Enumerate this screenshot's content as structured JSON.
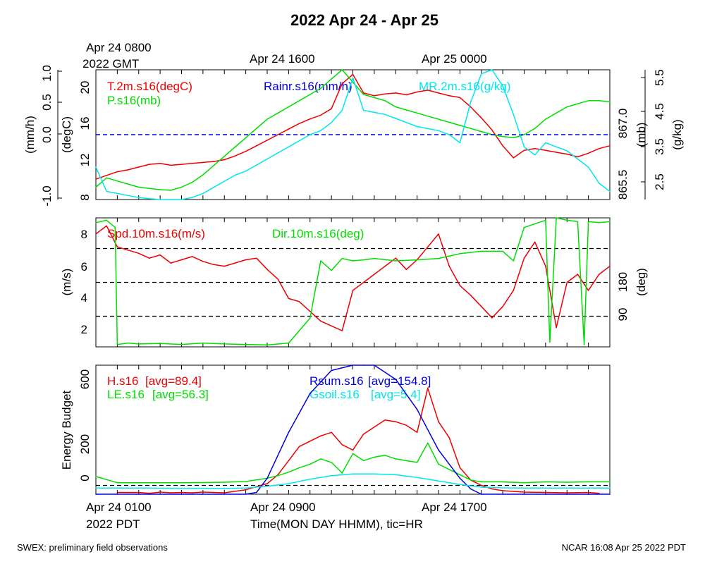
{
  "title": "2022 Apr 24 - Apr 25",
  "top_time_labels": [
    {
      "line1": "Apr 24 0800",
      "line2": "2022 GMT"
    },
    {
      "line1": "Apr 24 1600",
      "line2": ""
    },
    {
      "line1": "Apr 25 0000",
      "line2": ""
    }
  ],
  "bottom_time_labels": [
    {
      "line1": "Apr 24 0100",
      "line2": "2022 PDT"
    },
    {
      "line1": "Apr 24 0900",
      "line2": ""
    },
    {
      "line1": "Apr 24 1700",
      "line2": ""
    }
  ],
  "xlabel": "Time(MON DAY HHMM), tic=HR",
  "footer_left": "SWEX: preliminary field observations",
  "footer_right": "NCAR 16:08 Apr 25 2022 PDT",
  "colors": {
    "red": "#ee0000",
    "green": "#00dd00",
    "blue": "#0000dd",
    "cyan": "#00e5ee",
    "black": "#000000"
  },
  "chart_data": [
    {
      "type": "line",
      "panel": "temperature-pressure-rain-mixing-ratio",
      "x_range_hours": [
        0,
        24
      ],
      "axes": {
        "rain": {
          "label": "(mm/h)",
          "ticks": [
            "1.0",
            "0.5",
            "0.0",
            "-1.0"
          ],
          "range": [
            -1.0,
            1.0
          ]
        },
        "temp": {
          "label": "(degC)",
          "ticks": [
            "20",
            "16",
            "12",
            "8"
          ],
          "range": [
            8,
            22
          ]
        },
        "press": {
          "label": "(mb)",
          "ticks": [
            "867.0",
            "865.5"
          ],
          "range": [
            865.5,
            867.6
          ]
        },
        "mr": {
          "label": "(g/kg)",
          "ticks": [
            "5.5",
            "4.5",
            "3.5",
            "2.5"
          ],
          "range": [
            2.4,
            5.6
          ]
        }
      },
      "series": [
        {
          "name": "T.2m.s16(degC)",
          "axis": "temp",
          "color": "red",
          "x": [
            0,
            0.5,
            1,
            1.5,
            2,
            2.5,
            3,
            3.5,
            4,
            4.5,
            5,
            5.5,
            6,
            6.5,
            7,
            7.5,
            8,
            8.5,
            9,
            9.5,
            10,
            10.5,
            11,
            11.5,
            12,
            12.5,
            13,
            13.5,
            14,
            14.5,
            15,
            15.5,
            16,
            16.5,
            17,
            17.5,
            18,
            18.5,
            19,
            19.5,
            20,
            20.5,
            21,
            21.5,
            22,
            22.5,
            23,
            23.5,
            24
          ],
          "y": [
            10.2,
            10.6,
            11.0,
            11.2,
            11.5,
            11.8,
            11.9,
            11.7,
            11.8,
            11.9,
            12.0,
            12.1,
            12.3,
            12.7,
            13.2,
            13.8,
            14.4,
            15.0,
            15.6,
            16.2,
            16.7,
            17.1,
            17.8,
            20.5,
            21.5,
            19.5,
            19.2,
            19.4,
            19.5,
            19.3,
            19.6,
            19.8,
            19.5,
            19.2,
            19.0,
            18.0,
            16.8,
            15.5,
            13.8,
            12.5,
            13.3,
            13.5,
            13.3,
            13.1,
            12.9,
            12.6,
            13.0,
            13.5,
            13.8
          ]
        },
        {
          "name": "P.s16(mb)",
          "axis": "press",
          "color": "green",
          "x": [
            0,
            0.5,
            1,
            1.5,
            2,
            2.5,
            3,
            3.5,
            4,
            4.5,
            5,
            5.5,
            6,
            6.5,
            7,
            7.5,
            8,
            8.5,
            9,
            9.5,
            10,
            10.5,
            11,
            11.5,
            12,
            12.5,
            13,
            13.5,
            14,
            14.5,
            15,
            15.5,
            16,
            16.5,
            17,
            17.5,
            18,
            18.5,
            19,
            19.5,
            20,
            20.5,
            21,
            21.5,
            22,
            22.5,
            23,
            23.5,
            24
          ],
          "y": [
            865.7,
            865.85,
            865.8,
            865.75,
            865.7,
            865.68,
            865.66,
            865.65,
            865.7,
            865.78,
            865.9,
            866.05,
            866.2,
            866.35,
            866.5,
            866.65,
            866.8,
            866.9,
            867.0,
            867.1,
            867.2,
            867.3,
            867.45,
            867.6,
            867.4,
            867.2,
            867.15,
            867.1,
            867.0,
            866.95,
            866.9,
            866.85,
            866.8,
            866.75,
            866.7,
            866.65,
            866.6,
            866.55,
            866.52,
            866.5,
            866.55,
            866.65,
            866.8,
            866.9,
            867.0,
            867.05,
            867.1,
            867.1,
            867.08
          ]
        },
        {
          "name": "Rainr.s16(mm/h)",
          "axis": "rain",
          "color": "blue",
          "x": [
            0,
            24
          ],
          "y": [
            0.0,
            0.0
          ]
        },
        {
          "name": "MR.2m.s16(g/kg)",
          "axis": "mr",
          "color": "cyan",
          "x": [
            0,
            0.5,
            1,
            1.5,
            2,
            2.5,
            3,
            3.5,
            4,
            4.5,
            5,
            5.5,
            6,
            6.5,
            7,
            7.5,
            8,
            8.5,
            9,
            9.5,
            10,
            10.5,
            11,
            11.5,
            12,
            12.5,
            13,
            13.5,
            14,
            14.5,
            15,
            15.5,
            16,
            16.5,
            17,
            17.5,
            18,
            18.5,
            19,
            19.5,
            20,
            20.5,
            21,
            21.5,
            22,
            22.5,
            23,
            23.5,
            24
          ],
          "y": [
            3.2,
            2.6,
            2.55,
            2.5,
            2.45,
            2.42,
            2.4,
            2.4,
            2.4,
            2.45,
            2.55,
            2.7,
            2.85,
            3.0,
            3.1,
            3.25,
            3.4,
            3.55,
            3.7,
            3.85,
            4.0,
            4.1,
            4.3,
            4.6,
            5.4,
            4.6,
            4.55,
            4.5,
            4.4,
            4.3,
            4.2,
            4.15,
            4.1,
            4.0,
            3.8,
            4.8,
            5.5,
            5.6,
            5.2,
            4.5,
            3.7,
            3.5,
            3.8,
            3.7,
            3.6,
            3.4,
            3.2,
            2.8,
            2.6
          ]
        }
      ]
    },
    {
      "type": "line",
      "panel": "wind",
      "x_range_hours": [
        0,
        24
      ],
      "axes": {
        "spd": {
          "label": "(m/s)",
          "ticks": [
            "8",
            "6",
            "4",
            "2"
          ],
          "range": [
            1.0,
            9.0
          ]
        },
        "dir": {
          "label": "(deg)",
          "ticks": [
            "180",
            "90"
          ],
          "range": [
            0,
            270
          ]
        }
      },
      "reference_lines_ms": [
        7.1,
        5.0,
        2.9
      ],
      "series": [
        {
          "name": "Spd.10m.s16(m/s)",
          "axis": "spd",
          "color": "red",
          "x": [
            0,
            0.5,
            1,
            1.5,
            2,
            2.5,
            3,
            3.5,
            4,
            4.5,
            5,
            5.5,
            6,
            6.5,
            7,
            7.5,
            8,
            8.5,
            9,
            9.5,
            10,
            10.5,
            11,
            11.5,
            12,
            12.5,
            13,
            13.5,
            14,
            14.5,
            15,
            15.5,
            16,
            16.5,
            17,
            17.5,
            18,
            18.5,
            19,
            19.5,
            20,
            20.5,
            21,
            21.5,
            22,
            22.5,
            23,
            23.5,
            24
          ],
          "y": [
            8.0,
            8.5,
            7.2,
            7.0,
            6.8,
            6.5,
            6.7,
            6.2,
            6.4,
            6.6,
            6.3,
            6.1,
            6.0,
            6.2,
            6.4,
            6.5,
            5.8,
            5.2,
            4.0,
            3.8,
            3.2,
            2.6,
            2.3,
            2.0,
            4.5,
            5.0,
            5.5,
            6.0,
            6.5,
            5.8,
            6.4,
            7.2,
            8.0,
            6.0,
            4.8,
            4.2,
            3.5,
            2.8,
            3.5,
            4.5,
            6.5,
            7.5,
            6.0,
            2.2,
            5.0,
            5.5,
            4.5,
            5.5,
            6.0
          ]
        },
        {
          "name": "Dir.10m.s16(deg)",
          "axis": "dir",
          "color": "green",
          "x": [
            0,
            0.5,
            0.9,
            1.0,
            1.5,
            2,
            3,
            4,
            5,
            6,
            7,
            8,
            9,
            10,
            10.5,
            11,
            11.5,
            12,
            12.5,
            13,
            14,
            15,
            16,
            17,
            18,
            19,
            19.5,
            20,
            21,
            21.2,
            21.5,
            22,
            22.5,
            22.8,
            23,
            23.5,
            24
          ],
          "y": [
            260,
            265,
            250,
            5,
            8,
            6,
            7,
            5,
            8,
            6,
            5,
            4,
            8,
            60,
            180,
            160,
            185,
            180,
            182,
            185,
            180,
            182,
            185,
            195,
            200,
            200,
            180,
            250,
            265,
            10,
            270,
            265,
            262,
            5,
            262,
            260,
            262
          ]
        }
      ]
    },
    {
      "type": "line",
      "panel": "energy-budget",
      "x_range_hours": [
        0,
        24
      ],
      "axes": {
        "energy": {
          "label": "Energy Budget",
          "ticks": [
            "600",
            "200",
            "0"
          ],
          "range": [
            -50,
            680
          ]
        }
      },
      "reference_lines": [
        0
      ],
      "series": [
        {
          "name": "H.s16",
          "avg_label": "[avg=89.4]",
          "color": "red",
          "x": [
            1,
            2,
            2.5,
            3,
            3.5,
            4,
            4.5,
            5,
            5.5,
            6,
            7,
            8,
            8.5,
            9,
            9.5,
            10,
            10.5,
            11,
            11.5,
            12,
            12.5,
            13,
            13.5,
            14,
            14.5,
            15,
            15.5,
            16,
            16.5,
            17,
            17.5,
            18,
            18.5,
            19,
            20,
            21,
            22,
            23,
            23.5
          ],
          "y": [
            -40,
            -40,
            -45,
            -38,
            -42,
            -40,
            -42,
            -38,
            -40,
            -42,
            -25,
            10,
            60,
            140,
            220,
            250,
            280,
            300,
            230,
            200,
            290,
            330,
            370,
            360,
            340,
            300,
            550,
            360,
            270,
            100,
            30,
            0,
            -20,
            -30,
            -38,
            -40,
            -42,
            -40,
            -45
          ]
        },
        {
          "name": "LE.s16",
          "avg_label": "[avg=56.3]",
          "color": "green",
          "x": [
            0,
            1,
            2,
            3,
            4,
            5,
            6,
            7,
            8,
            8.5,
            9,
            9.5,
            10,
            10.5,
            11,
            11.5,
            12,
            12.5,
            13,
            13.5,
            14,
            14.5,
            15,
            15.5,
            16,
            16.5,
            17,
            17.5,
            18,
            19,
            20,
            21,
            22,
            23,
            24
          ],
          "y": [
            50,
            15,
            15,
            15,
            15,
            16,
            18,
            22,
            40,
            55,
            75,
            100,
            120,
            150,
            130,
            70,
            180,
            140,
            160,
            170,
            150,
            140,
            130,
            240,
            120,
            90,
            60,
            30,
            20,
            20,
            15,
            20,
            18,
            20,
            20
          ]
        },
        {
          "name": "Rsum.s16",
          "avg_label": "[avg=154.8]",
          "color": "blue",
          "x": [
            0,
            1,
            2,
            3,
            4,
            5,
            6,
            7,
            7.5,
            8,
            9,
            10,
            11,
            12,
            12.5,
            13,
            14,
            15,
            16,
            17,
            17.5,
            18,
            19,
            20,
            21,
            22,
            23,
            24
          ],
          "y": [
            -75,
            -75,
            -75,
            -75,
            -75,
            -75,
            -75,
            -72,
            -40,
            40,
            300,
            520,
            650,
            690,
            690,
            680,
            600,
            430,
            200,
            40,
            -20,
            -50,
            -70,
            -75,
            -75,
            -75,
            -75,
            -75
          ]
        },
        {
          "name": "Gsoil.s16",
          "avg_label": "[avg=5.4]",
          "color": "cyan",
          "x": [
            0,
            2,
            4,
            6,
            7,
            8,
            9,
            10,
            11,
            12,
            13,
            14,
            15,
            16,
            17,
            18,
            19,
            20,
            22,
            24
          ],
          "y": [
            -15,
            -15,
            -16,
            -17,
            -15,
            -5,
            10,
            35,
            55,
            65,
            65,
            60,
            45,
            25,
            5,
            -10,
            -14,
            -15,
            -15,
            -15
          ]
        }
      ]
    }
  ]
}
